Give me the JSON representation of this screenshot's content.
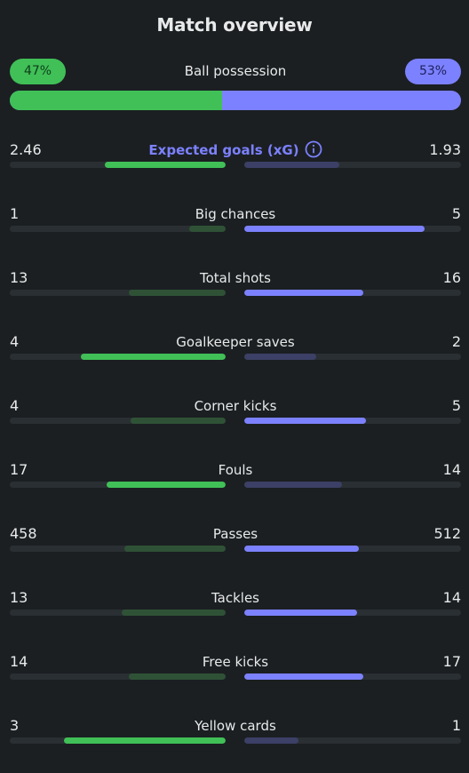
{
  "title": "Match overview",
  "colors": {
    "home": "#40c057",
    "away": "#7c81ff",
    "background": "#1b1f22"
  },
  "possession": {
    "label": "Ball possession",
    "home": "47%",
    "away": "53%",
    "home_fraction": 0.47,
    "away_fraction": 0.53
  },
  "stats": [
    {
      "key": "xg",
      "label": "Expected goals (xG)",
      "home": "2.46",
      "away": "1.93",
      "home_ratio": 0.56,
      "away_ratio": 0.44,
      "accent": true,
      "icon": "info-icon"
    },
    {
      "key": "big-chances",
      "label": "Big chances",
      "home": "1",
      "away": "5",
      "home_ratio": 0.17,
      "away_ratio": 0.83
    },
    {
      "key": "total-shots",
      "label": "Total shots",
      "home": "13",
      "away": "16",
      "home_ratio": 0.45,
      "away_ratio": 0.55
    },
    {
      "key": "goalkeeper-saves",
      "label": "Goalkeeper saves",
      "home": "4",
      "away": "2",
      "home_ratio": 0.67,
      "away_ratio": 0.33
    },
    {
      "key": "corner-kicks",
      "label": "Corner kicks",
      "home": "4",
      "away": "5",
      "home_ratio": 0.44,
      "away_ratio": 0.56
    },
    {
      "key": "fouls",
      "label": "Fouls",
      "home": "17",
      "away": "14",
      "home_ratio": 0.55,
      "away_ratio": 0.45
    },
    {
      "key": "passes",
      "label": "Passes",
      "home": "458",
      "away": "512",
      "home_ratio": 0.47,
      "away_ratio": 0.53
    },
    {
      "key": "tackles",
      "label": "Tackles",
      "home": "13",
      "away": "14",
      "home_ratio": 0.48,
      "away_ratio": 0.52
    },
    {
      "key": "free-kicks",
      "label": "Free kicks",
      "home": "14",
      "away": "17",
      "home_ratio": 0.45,
      "away_ratio": 0.55
    },
    {
      "key": "yellow-cards",
      "label": "Yellow cards",
      "home": "3",
      "away": "1",
      "home_ratio": 0.75,
      "away_ratio": 0.25
    }
  ]
}
